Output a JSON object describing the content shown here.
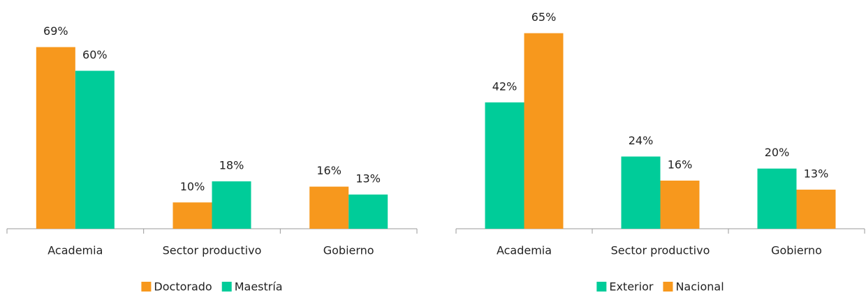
{
  "chart_data": [
    {
      "type": "bar",
      "categories": [
        "Academia",
        "Sector productivo",
        "Gobierno"
      ],
      "series": [
        {
          "name": "Doctorado",
          "color": "#f7981d",
          "values": [
            69,
            10,
            16
          ],
          "value_labels": [
            "69%",
            "10%",
            "16%"
          ]
        },
        {
          "name": "Maestría",
          "color": "#00cc99",
          "values": [
            60,
            18,
            13
          ],
          "value_labels": [
            "60%",
            "18%",
            "13%"
          ]
        }
      ],
      "ylim": [
        0,
        80
      ],
      "legend": "bottom"
    },
    {
      "type": "bar",
      "categories": [
        "Academia",
        "Sector productivo",
        "Gobierno"
      ],
      "series": [
        {
          "name": "Exterior",
          "color": "#00cc99",
          "values": [
            42,
            24,
            20
          ],
          "value_labels": [
            "42%",
            "24%",
            "20%"
          ]
        },
        {
          "name": "Nacional",
          "color": "#f7981d",
          "values": [
            65,
            16,
            13
          ],
          "value_labels": [
            "65%",
            "16%",
            "13%"
          ]
        }
      ],
      "ylim": [
        0,
        70
      ],
      "legend": "bottom"
    }
  ]
}
